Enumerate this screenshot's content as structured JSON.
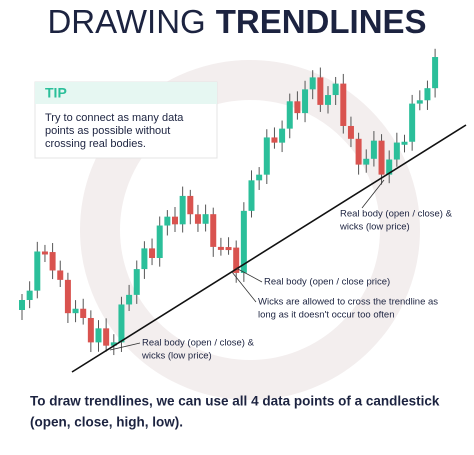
{
  "header": {
    "title_light": "DRAWING",
    "title_bold": "TRENDLINES"
  },
  "tip": {
    "label": "TIP",
    "lines": [
      "Try to connect as many data",
      "points as possible without",
      "crossing real bodies."
    ]
  },
  "annotations": [
    {
      "lines": [
        "Real body (open / close) &",
        "wicks (low price)"
      ]
    },
    {
      "lines": [
        "Real body (open / close price)"
      ]
    },
    {
      "lines": [
        "Wicks are allowed to cross the trendline as",
        "long as it doesn't occur too often"
      ]
    },
    {
      "lines": [
        "Real body (open / close) &",
        "wicks (low price)"
      ]
    }
  ],
  "caption": {
    "lines": [
      "To draw trendlines, we can use all 4 data points of a candlestick",
      "(open, close, high, low)."
    ]
  }
}
